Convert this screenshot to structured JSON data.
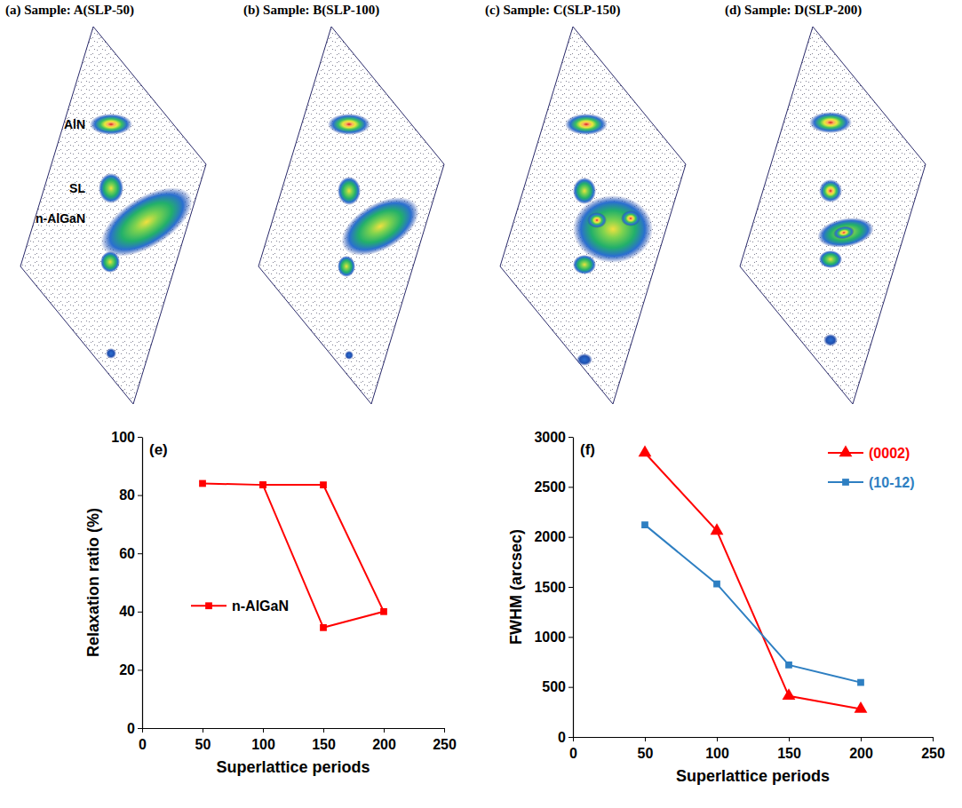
{
  "rsm_panels": [
    {
      "title": "(a) Sample: A(SLP-50)",
      "labels": [
        "AlN",
        "SL",
        "n-AlGaN"
      ]
    },
    {
      "title": "(b) Sample: B(SLP-100)"
    },
    {
      "title": "(c) Sample: C(SLP-150)"
    },
    {
      "title": "(d) Sample: D(SLP-200)"
    }
  ],
  "chart_data": [
    {
      "type": "line",
      "title": "(e)",
      "x_label": "Superlattice periods",
      "y_label": "Relaxation ratio (%)",
      "x": [
        50,
        100,
        150,
        200,
        150,
        100
      ],
      "series": [
        {
          "name": "n-AlGaN",
          "color": "#ff0000",
          "marker": "square",
          "values": [
            84,
            83.5,
            34.5,
            40,
            83.5,
            83.5
          ]
        }
      ],
      "xlim": [
        0,
        250
      ],
      "xticks": [
        0,
        50,
        100,
        150,
        200,
        250
      ],
      "ylim": [
        0,
        100
      ],
      "yticks": [
        0,
        20,
        40,
        60,
        80,
        100
      ],
      "grid": false,
      "legend": "left"
    },
    {
      "type": "line",
      "title": "(f)",
      "x_label": "Superlattice periods",
      "y_label": "FWHM (arcsec)",
      "x": [
        50,
        100,
        150,
        200
      ],
      "series": [
        {
          "name": "(0002)",
          "color": "#ff0000",
          "marker": "triangle",
          "values": [
            2840,
            2060,
            410,
            280
          ]
        },
        {
          "name": "(10-12)",
          "color": "#2e7fc2",
          "marker": "square",
          "values": [
            2120,
            1530,
            720,
            545
          ]
        }
      ],
      "xlim": [
        0,
        250
      ],
      "xticks": [
        0,
        50,
        100,
        150,
        200,
        250
      ],
      "ylim": [
        0,
        3000
      ],
      "yticks": [
        0,
        500,
        1000,
        1500,
        2000,
        2500,
        3000
      ],
      "grid": false,
      "legend": "upper-right"
    }
  ]
}
